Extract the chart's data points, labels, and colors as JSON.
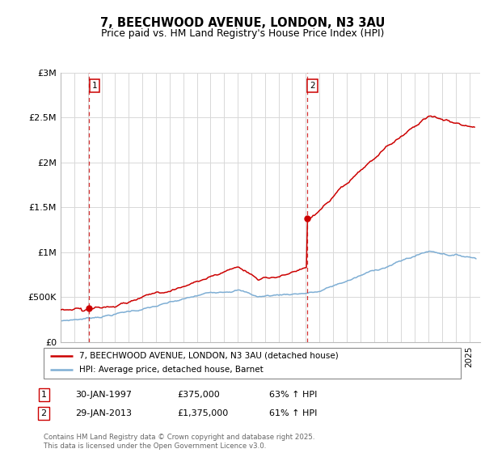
{
  "title": "7, BEECHWOOD AVENUE, LONDON, N3 3AU",
  "subtitle": "Price paid vs. HM Land Registry's House Price Index (HPI)",
  "legend_line1": "7, BEECHWOOD AVENUE, LONDON, N3 3AU (detached house)",
  "legend_line2": "HPI: Average price, detached house, Barnet",
  "annotation1_date": "30-JAN-1997",
  "annotation1_price": "£375,000",
  "annotation1_hpi": "63% ↑ HPI",
  "annotation2_date": "29-JAN-2013",
  "annotation2_price": "£1,375,000",
  "annotation2_hpi": "61% ↑ HPI",
  "footer": "Contains HM Land Registry data © Crown copyright and database right 2025.\nThis data is licensed under the Open Government Licence v3.0.",
  "red_color": "#cc0000",
  "blue_color": "#7eaed4",
  "vline_color": "#cc0000",
  "grid_color": "#d8d8d8",
  "background_color": "#ffffff",
  "xlim_start": 1995.0,
  "xlim_end": 2025.8,
  "ylim_min": 0,
  "ylim_max": 3000000,
  "yticks": [
    0,
    500000,
    1000000,
    1500000,
    2000000,
    2500000,
    3000000
  ],
  "ytick_labels": [
    "£0",
    "£500K",
    "£1M",
    "£1.5M",
    "£2M",
    "£2.5M",
    "£3M"
  ],
  "sale1_x": 1997.08,
  "sale1_y": 375000,
  "sale2_x": 2013.08,
  "sale2_y": 1375000
}
